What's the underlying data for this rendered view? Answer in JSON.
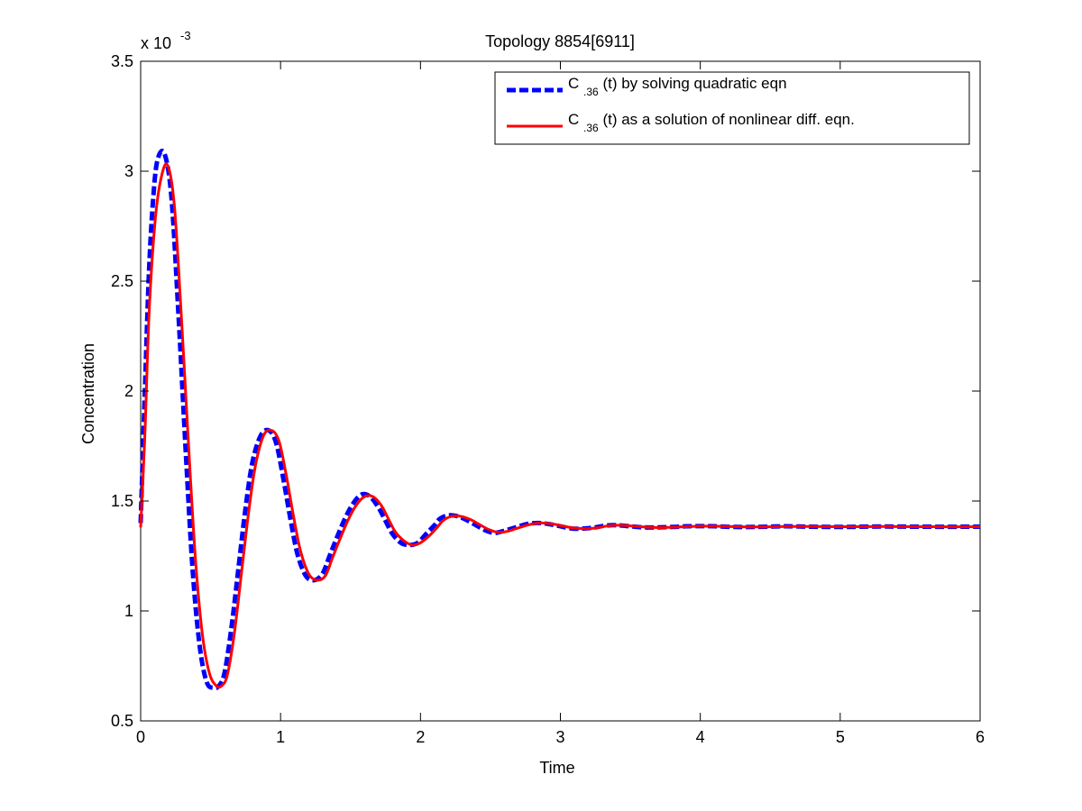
{
  "chart_data": {
    "type": "line",
    "title": "Topology 8854[6911]",
    "xlabel": "Time",
    "ylabel": "Concentration",
    "exponent_label": {
      "base": "x 10",
      "power": "-3"
    },
    "xlim": [
      0,
      6
    ],
    "ylim": [
      0.5,
      3.5
    ],
    "xticks": [
      0,
      1,
      2,
      3,
      4,
      5,
      6
    ],
    "yticks": [
      0.5,
      1,
      1.5,
      2,
      2.5,
      3,
      3.5
    ],
    "xtick_labels": [
      "0",
      "1",
      "2",
      "3",
      "4",
      "5",
      "6"
    ],
    "ytick_labels": [
      "0.5",
      "1",
      "1.5",
      "2",
      "2.5",
      "3",
      "3.5"
    ],
    "y_scale_note": "values in units of 10^-3",
    "grid": false,
    "legend_position": "top-right",
    "series": [
      {
        "name": "C.36(t) by solving quadratic eqn",
        "legend_main": "C",
        "legend_sub": ".36",
        "legend_rest": "(t) by solving quadratic eqn",
        "color": "#0000ff",
        "style": "dashed",
        "x": [
          0,
          0.03,
          0.06,
          0.09,
          0.12,
          0.17,
          0.22,
          0.27,
          0.32,
          0.37,
          0.42,
          0.47,
          0.52,
          0.56,
          0.6,
          0.65,
          0.7,
          0.75,
          0.8,
          0.86,
          0.92,
          0.97,
          1.02,
          1.07,
          1.12,
          1.18,
          1.24,
          1.3,
          1.35,
          1.4,
          1.46,
          1.52,
          1.58,
          1.64,
          1.7,
          1.75,
          1.8,
          1.86,
          1.92,
          1.98,
          2.04,
          2.1,
          2.14,
          2.2,
          2.27,
          2.34,
          2.41,
          2.47,
          2.53,
          2.6,
          2.68,
          2.76,
          2.84,
          2.92,
          3.0,
          3.08,
          3.17,
          3.25,
          3.32,
          3.4,
          3.5,
          3.6,
          3.7,
          3.8,
          3.9,
          4.0,
          4.1,
          4.25,
          4.4,
          4.6,
          4.8,
          5.0,
          5.3,
          5.6,
          6.0
        ],
        "y": [
          1.4,
          2.0,
          2.55,
          2.88,
          3.05,
          3.08,
          2.88,
          2.35,
          1.75,
          1.2,
          0.85,
          0.68,
          0.65,
          0.66,
          0.72,
          0.93,
          1.2,
          1.47,
          1.68,
          1.8,
          1.82,
          1.76,
          1.6,
          1.42,
          1.26,
          1.16,
          1.14,
          1.17,
          1.25,
          1.33,
          1.42,
          1.49,
          1.53,
          1.52,
          1.47,
          1.41,
          1.35,
          1.31,
          1.3,
          1.31,
          1.35,
          1.39,
          1.42,
          1.435,
          1.43,
          1.41,
          1.385,
          1.365,
          1.355,
          1.365,
          1.38,
          1.395,
          1.4,
          1.395,
          1.385,
          1.375,
          1.375,
          1.38,
          1.388,
          1.39,
          1.385,
          1.38,
          1.38,
          1.382,
          1.385,
          1.386,
          1.385,
          1.382,
          1.382,
          1.385,
          1.383,
          1.382,
          1.384,
          1.383,
          1.383
        ]
      },
      {
        "name": "C.36(t) as a solution of nonlinear diff. eqn.",
        "legend_main": "C",
        "legend_sub": ".36",
        "legend_rest": "(t) as a solution of nonlinear diff. eqn.",
        "color": "#ff0000",
        "style": "solid",
        "x": [
          0,
          0.03,
          0.06,
          0.1,
          0.14,
          0.19,
          0.24,
          0.29,
          0.34,
          0.39,
          0.44,
          0.49,
          0.54,
          0.58,
          0.62,
          0.67,
          0.72,
          0.77,
          0.82,
          0.88,
          0.94,
          0.99,
          1.04,
          1.09,
          1.14,
          1.2,
          1.26,
          1.32,
          1.37,
          1.42,
          1.48,
          1.54,
          1.6,
          1.66,
          1.72,
          1.77,
          1.82,
          1.88,
          1.94,
          2.0,
          2.06,
          2.12,
          2.16,
          2.22,
          2.29,
          2.36,
          2.43,
          2.49,
          2.55,
          2.62,
          2.7,
          2.78,
          2.86,
          2.94,
          3.02,
          3.1,
          3.19,
          3.27,
          3.34,
          3.42,
          3.52,
          3.62,
          3.72,
          3.82,
          3.92,
          4.02,
          4.12,
          4.27,
          4.42,
          4.62,
          4.82,
          5.02,
          5.32,
          5.62,
          6.0
        ],
        "y": [
          1.38,
          1.8,
          2.35,
          2.75,
          2.95,
          3.03,
          2.85,
          2.35,
          1.78,
          1.25,
          0.9,
          0.72,
          0.66,
          0.66,
          0.71,
          0.9,
          1.17,
          1.44,
          1.66,
          1.8,
          1.82,
          1.77,
          1.62,
          1.44,
          1.28,
          1.17,
          1.14,
          1.16,
          1.24,
          1.32,
          1.41,
          1.48,
          1.52,
          1.52,
          1.48,
          1.42,
          1.36,
          1.32,
          1.3,
          1.31,
          1.34,
          1.38,
          1.41,
          1.43,
          1.43,
          1.415,
          1.39,
          1.37,
          1.358,
          1.362,
          1.378,
          1.393,
          1.4,
          1.396,
          1.386,
          1.377,
          1.374,
          1.379,
          1.387,
          1.39,
          1.386,
          1.381,
          1.379,
          1.381,
          1.384,
          1.386,
          1.385,
          1.383,
          1.382,
          1.384,
          1.384,
          1.383,
          1.384,
          1.383,
          1.383
        ]
      }
    ]
  }
}
